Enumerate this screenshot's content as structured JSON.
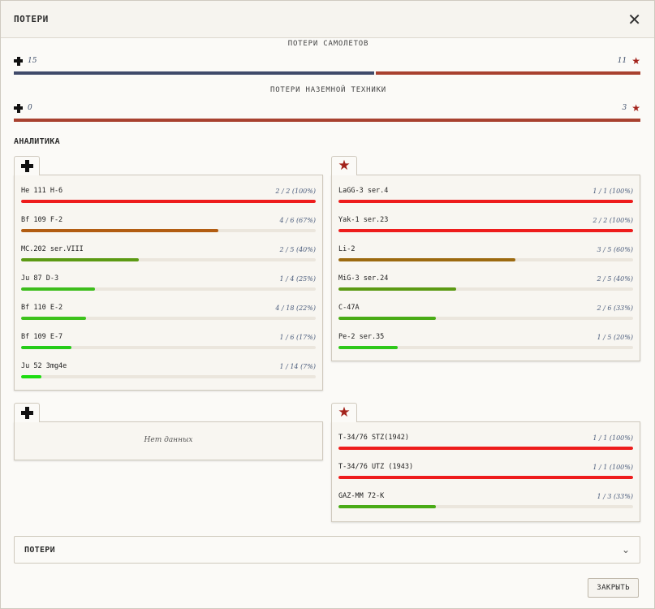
{
  "modal": {
    "title": "ПОТЕРИ",
    "close_icon": "close-icon"
  },
  "air_losses": {
    "label": "ПОТЕРИ САМОЛЕТОВ",
    "left_count": "15",
    "right_count": "11",
    "left_share": 0.577
  },
  "ground_losses": {
    "label": "ПОТЕРИ НАЗЕМНОЙ ТЕХНИКИ",
    "left_count": "0",
    "right_count": "3",
    "left_share": 0.0
  },
  "analytics": {
    "title": "АНАЛИТИКА",
    "air_left": [
      {
        "name": "He 111 H-6",
        "value": "2 / 2 (100%)",
        "pct": 100,
        "color": "#ee1c1c"
      },
      {
        "name": "Bf 109 F-2",
        "value": "4 / 6 (67%)",
        "pct": 67,
        "color": "#b25d12"
      },
      {
        "name": "MC.202 ser.VIII",
        "value": "2 / 5 (40%)",
        "pct": 40,
        "color": "#5c9a14"
      },
      {
        "name": "Ju 87 D-3",
        "value": "1 / 4 (25%)",
        "pct": 25,
        "color": "#3dbd1c"
      },
      {
        "name": "Bf 110 E-2",
        "value": "4 / 18 (22%)",
        "pct": 22,
        "color": "#3dc21c"
      },
      {
        "name": "Bf 109 E-7",
        "value": "1 / 6 (17%)",
        "pct": 17,
        "color": "#25cc18"
      },
      {
        "name": "Ju 52 3mg4e",
        "value": "1 / 14 (7%)",
        "pct": 7,
        "color": "#1ddd10"
      }
    ],
    "air_right": [
      {
        "name": "LaGG-3 ser.4",
        "value": "1 / 1 (100%)",
        "pct": 100,
        "color": "#ee1c1c"
      },
      {
        "name": "Yak-1 ser.23",
        "value": "2 / 2 (100%)",
        "pct": 100,
        "color": "#ee1c1c"
      },
      {
        "name": "Li-2",
        "value": "3 / 5 (60%)",
        "pct": 60,
        "color": "#9c6a10"
      },
      {
        "name": "MiG-3 ser.24",
        "value": "2 / 5 (40%)",
        "pct": 40,
        "color": "#5c9a14"
      },
      {
        "name": "C-47A",
        "value": "2 / 6 (33%)",
        "pct": 33,
        "color": "#49ab16"
      },
      {
        "name": "Pe-2 ser.35",
        "value": "1 / 5 (20%)",
        "pct": 20,
        "color": "#2ec81a"
      }
    ],
    "ground_left_empty": "Нет данных",
    "ground_right": [
      {
        "name": "T-34/76 STZ(1942)",
        "value": "1 / 1 (100%)",
        "pct": 100,
        "color": "#ee1c1c"
      },
      {
        "name": "T-34/76 UTZ (1943)",
        "value": "1 / 1 (100%)",
        "pct": 100,
        "color": "#ee1c1c"
      },
      {
        "name": "GAZ-MM 72-K",
        "value": "1 / 3 (33%)",
        "pct": 33,
        "color": "#49ab16"
      }
    ]
  },
  "losses_section": {
    "label": "ПОТЕРИ",
    "icon": "chevron-down-icon"
  },
  "footer": {
    "close_label": "ЗАКРЫТЬ"
  },
  "colors": {
    "axis_blue": "#3f4a6a",
    "allied_red": "#a8412f",
    "star": "#a3231c"
  }
}
